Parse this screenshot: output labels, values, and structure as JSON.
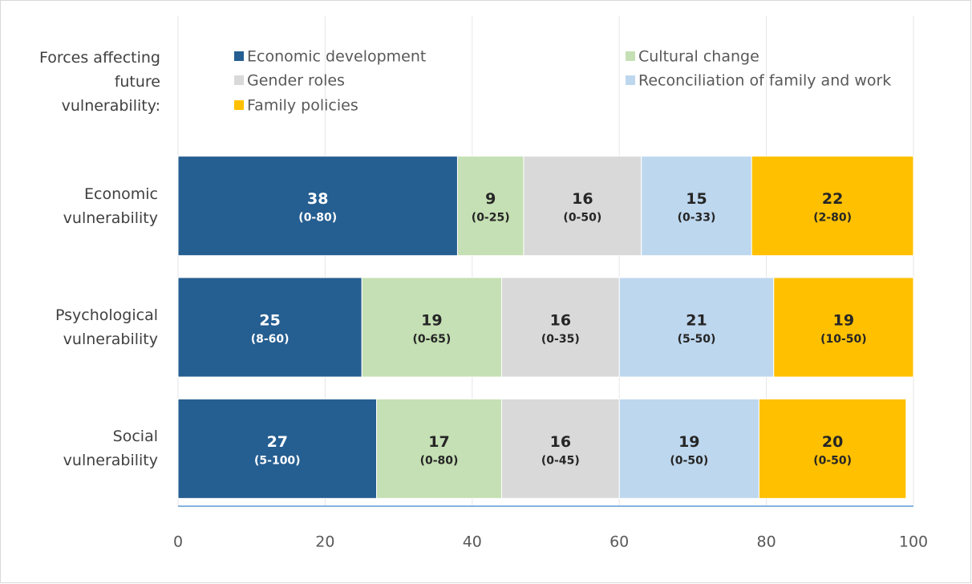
{
  "chart_data": {
    "type": "stacked_barh",
    "legend_title": "Forces affecting future vulnerability:",
    "categories": [
      "Economic vulnerability",
      "Psychological vulnerability",
      "Social vulnerability"
    ],
    "series": [
      {
        "name": "Economic development",
        "color": "#255e91",
        "values": [
          38,
          25,
          27
        ],
        "ranges": [
          "(0-80)",
          "(8-60)",
          "(5-100)"
        ]
      },
      {
        "name": "Cultural change",
        "color": "#c5e0b4",
        "values": [
          9,
          19,
          17
        ],
        "ranges": [
          "(0-25)",
          "(0-65)",
          "(0-80)"
        ]
      },
      {
        "name": "Gender roles",
        "color": "#d9d9d9",
        "values": [
          16,
          16,
          16
        ],
        "ranges": [
          "(0-50)",
          "(0-35)",
          "(0-45)"
        ]
      },
      {
        "name": "Reconciliation of family and work",
        "color": "#bdd7ee",
        "values": [
          15,
          21,
          19
        ],
        "ranges": [
          "(0-33)",
          "(5-50)",
          "(0-50)"
        ]
      },
      {
        "name": "Family policies",
        "color": "#ffc000",
        "values": [
          22,
          19,
          20
        ],
        "ranges": [
          "(2-80)",
          "(10-50)",
          "(0-50)"
        ]
      }
    ],
    "xlim": [
      0,
      100
    ],
    "xticks": [
      0,
      20,
      40,
      60,
      80,
      100
    ],
    "grid": true
  }
}
